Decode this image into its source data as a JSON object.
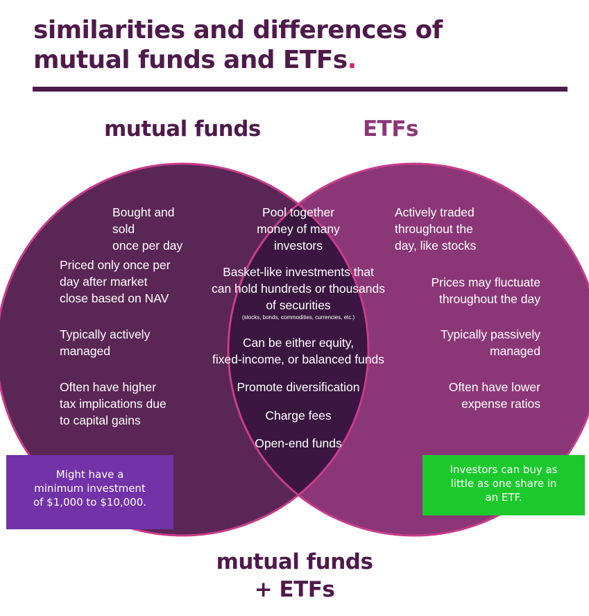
{
  "title": {
    "line1": "similarities and differences of",
    "line2": "mutual funds and ETFs",
    "dot": "."
  },
  "mutual_funds": {
    "heading": "mutual funds",
    "traits": [
      [
        "Bought and sold",
        "once per day"
      ],
      [
        "Priced only once per",
        "day after market",
        "close based on NAV"
      ],
      [
        "Typically actively",
        "managed"
      ],
      [
        "Often have higher",
        "tax implications due",
        "to capital gains"
      ]
    ],
    "callout": [
      "Might have a",
      "minimum investment",
      "of $1,000 to $10,000."
    ]
  },
  "etfs": {
    "heading": "ETFs",
    "traits": [
      [
        "Actively traded",
        "throughout the",
        "day, like stocks"
      ],
      [
        "Prices may fluctuate",
        "throughout the day"
      ],
      [
        "Typically passively",
        "managed"
      ],
      [
        "Often have lower",
        "expense ratios"
      ]
    ],
    "callout": [
      "Investors can buy as",
      "little as one share in",
      "an ETF."
    ]
  },
  "shared": {
    "traits": [
      [
        "Pool together",
        "money of many",
        "investors"
      ],
      [
        "Basket-like investments that",
        "can hold hundreds or thousands",
        "of securities"
      ],
      [
        "Can be either equity,",
        "fixed-income, or balanced funds"
      ],
      [
        "Promote diversification"
      ],
      [
        "Charge fees"
      ],
      [
        "Open-end funds"
      ]
    ],
    "securities_note": "(stocks, bonds, commodities, currencies, etc.)"
  },
  "footer": {
    "line1": "mutual funds",
    "line2": "+ ETFs"
  },
  "colors": {
    "title": "#4f1a4b",
    "title_dot": "#d2226f",
    "mutual_funds_circle": "#5a2655",
    "etfs_circle": "#8b3777",
    "overlap": "#3a1640",
    "circle_outline": "#c83c8a",
    "callout_mutual_funds": "#7232a8",
    "callout_etfs": "#1cc92d"
  }
}
